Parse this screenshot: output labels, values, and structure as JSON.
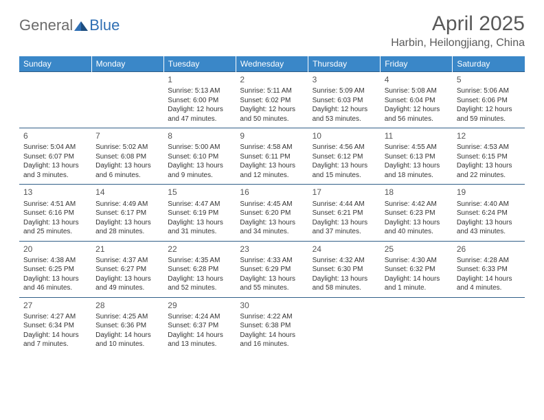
{
  "logo": {
    "general": "General",
    "blue": "Blue"
  },
  "title": "April 2025",
  "location": "Harbin, Heilongjiang, China",
  "colors": {
    "header_bg": "#3a87c8",
    "header_text": "#ffffff",
    "border": "#2f5d87",
    "text": "#333333",
    "title_text": "#595959",
    "logo_gray": "#6b6b6b",
    "logo_blue": "#2f6fb3"
  },
  "weekdays": [
    "Sunday",
    "Monday",
    "Tuesday",
    "Wednesday",
    "Thursday",
    "Friday",
    "Saturday"
  ],
  "weeks": [
    [
      null,
      null,
      {
        "n": "1",
        "sr": "Sunrise: 5:13 AM",
        "ss": "Sunset: 6:00 PM",
        "dl": "Daylight: 12 hours and 47 minutes."
      },
      {
        "n": "2",
        "sr": "Sunrise: 5:11 AM",
        "ss": "Sunset: 6:02 PM",
        "dl": "Daylight: 12 hours and 50 minutes."
      },
      {
        "n": "3",
        "sr": "Sunrise: 5:09 AM",
        "ss": "Sunset: 6:03 PM",
        "dl": "Daylight: 12 hours and 53 minutes."
      },
      {
        "n": "4",
        "sr": "Sunrise: 5:08 AM",
        "ss": "Sunset: 6:04 PM",
        "dl": "Daylight: 12 hours and 56 minutes."
      },
      {
        "n": "5",
        "sr": "Sunrise: 5:06 AM",
        "ss": "Sunset: 6:06 PM",
        "dl": "Daylight: 12 hours and 59 minutes."
      }
    ],
    [
      {
        "n": "6",
        "sr": "Sunrise: 5:04 AM",
        "ss": "Sunset: 6:07 PM",
        "dl": "Daylight: 13 hours and 3 minutes."
      },
      {
        "n": "7",
        "sr": "Sunrise: 5:02 AM",
        "ss": "Sunset: 6:08 PM",
        "dl": "Daylight: 13 hours and 6 minutes."
      },
      {
        "n": "8",
        "sr": "Sunrise: 5:00 AM",
        "ss": "Sunset: 6:10 PM",
        "dl": "Daylight: 13 hours and 9 minutes."
      },
      {
        "n": "9",
        "sr": "Sunrise: 4:58 AM",
        "ss": "Sunset: 6:11 PM",
        "dl": "Daylight: 13 hours and 12 minutes."
      },
      {
        "n": "10",
        "sr": "Sunrise: 4:56 AM",
        "ss": "Sunset: 6:12 PM",
        "dl": "Daylight: 13 hours and 15 minutes."
      },
      {
        "n": "11",
        "sr": "Sunrise: 4:55 AM",
        "ss": "Sunset: 6:13 PM",
        "dl": "Daylight: 13 hours and 18 minutes."
      },
      {
        "n": "12",
        "sr": "Sunrise: 4:53 AM",
        "ss": "Sunset: 6:15 PM",
        "dl": "Daylight: 13 hours and 22 minutes."
      }
    ],
    [
      {
        "n": "13",
        "sr": "Sunrise: 4:51 AM",
        "ss": "Sunset: 6:16 PM",
        "dl": "Daylight: 13 hours and 25 minutes."
      },
      {
        "n": "14",
        "sr": "Sunrise: 4:49 AM",
        "ss": "Sunset: 6:17 PM",
        "dl": "Daylight: 13 hours and 28 minutes."
      },
      {
        "n": "15",
        "sr": "Sunrise: 4:47 AM",
        "ss": "Sunset: 6:19 PM",
        "dl": "Daylight: 13 hours and 31 minutes."
      },
      {
        "n": "16",
        "sr": "Sunrise: 4:45 AM",
        "ss": "Sunset: 6:20 PM",
        "dl": "Daylight: 13 hours and 34 minutes."
      },
      {
        "n": "17",
        "sr": "Sunrise: 4:44 AM",
        "ss": "Sunset: 6:21 PM",
        "dl": "Daylight: 13 hours and 37 minutes."
      },
      {
        "n": "18",
        "sr": "Sunrise: 4:42 AM",
        "ss": "Sunset: 6:23 PM",
        "dl": "Daylight: 13 hours and 40 minutes."
      },
      {
        "n": "19",
        "sr": "Sunrise: 4:40 AM",
        "ss": "Sunset: 6:24 PM",
        "dl": "Daylight: 13 hours and 43 minutes."
      }
    ],
    [
      {
        "n": "20",
        "sr": "Sunrise: 4:38 AM",
        "ss": "Sunset: 6:25 PM",
        "dl": "Daylight: 13 hours and 46 minutes."
      },
      {
        "n": "21",
        "sr": "Sunrise: 4:37 AM",
        "ss": "Sunset: 6:27 PM",
        "dl": "Daylight: 13 hours and 49 minutes."
      },
      {
        "n": "22",
        "sr": "Sunrise: 4:35 AM",
        "ss": "Sunset: 6:28 PM",
        "dl": "Daylight: 13 hours and 52 minutes."
      },
      {
        "n": "23",
        "sr": "Sunrise: 4:33 AM",
        "ss": "Sunset: 6:29 PM",
        "dl": "Daylight: 13 hours and 55 minutes."
      },
      {
        "n": "24",
        "sr": "Sunrise: 4:32 AM",
        "ss": "Sunset: 6:30 PM",
        "dl": "Daylight: 13 hours and 58 minutes."
      },
      {
        "n": "25",
        "sr": "Sunrise: 4:30 AM",
        "ss": "Sunset: 6:32 PM",
        "dl": "Daylight: 14 hours and 1 minute."
      },
      {
        "n": "26",
        "sr": "Sunrise: 4:28 AM",
        "ss": "Sunset: 6:33 PM",
        "dl": "Daylight: 14 hours and 4 minutes."
      }
    ],
    [
      {
        "n": "27",
        "sr": "Sunrise: 4:27 AM",
        "ss": "Sunset: 6:34 PM",
        "dl": "Daylight: 14 hours and 7 minutes."
      },
      {
        "n": "28",
        "sr": "Sunrise: 4:25 AM",
        "ss": "Sunset: 6:36 PM",
        "dl": "Daylight: 14 hours and 10 minutes."
      },
      {
        "n": "29",
        "sr": "Sunrise: 4:24 AM",
        "ss": "Sunset: 6:37 PM",
        "dl": "Daylight: 14 hours and 13 minutes."
      },
      {
        "n": "30",
        "sr": "Sunrise: 4:22 AM",
        "ss": "Sunset: 6:38 PM",
        "dl": "Daylight: 14 hours and 16 minutes."
      },
      null,
      null,
      null
    ]
  ]
}
